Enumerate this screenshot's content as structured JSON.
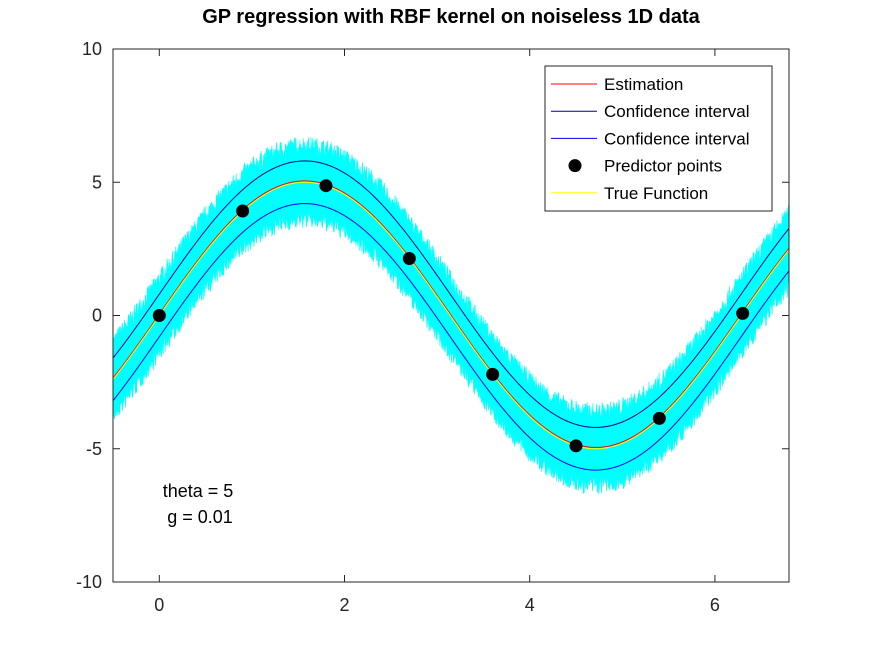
{
  "chart_data": {
    "type": "line",
    "title": "GP regression with RBF kernel on noiseless 1D data",
    "xlabel": "",
    "ylabel": "",
    "xlim": [
      -0.5,
      6.8
    ],
    "ylim": [
      -10,
      10
    ],
    "xticks": [
      0,
      2,
      4,
      6
    ],
    "yticks": [
      -10,
      -5,
      0,
      5,
      10
    ],
    "grid": false,
    "legend_position": "top-right",
    "true_function": "5*sin(x)",
    "confidence_halfwidth": 0.8,
    "noise_band_halfwidth": 1.5,
    "series": [
      {
        "name": "Estimation",
        "color": "#ff0000"
      },
      {
        "name": "Confidence interval",
        "color": "#00008b"
      },
      {
        "name": "Confidence interval",
        "color": "#0000ff"
      },
      {
        "name": "Predictor points",
        "color": "#000000"
      },
      {
        "name": "True Function",
        "color": "#ffff00"
      }
    ],
    "predictor_points": {
      "x": [
        0,
        0.9,
        1.8,
        2.7,
        3.6,
        4.5,
        5.4,
        6.3
      ],
      "y": [
        0,
        3.92,
        4.87,
        2.14,
        -2.21,
        -4.89,
        -3.86,
        0.08
      ]
    },
    "annotations": [
      {
        "text": "theta = 5"
      },
      {
        "text": "g = 0.01"
      }
    ],
    "band_color": "#00ffff"
  }
}
